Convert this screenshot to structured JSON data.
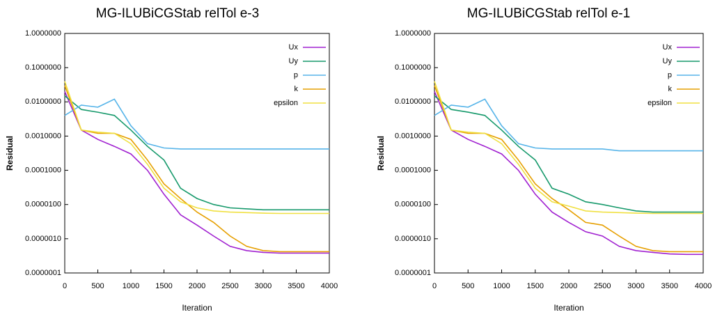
{
  "chart_data": [
    {
      "type": "line",
      "title": "MG-ILUBiCGStab relTol e-3",
      "x_label": "Iteration",
      "y_label": "Residual",
      "log_y": true,
      "legend": "top-right",
      "xlim": [
        0,
        4000
      ],
      "xticks": [
        0,
        500,
        1000,
        1500,
        2000,
        2500,
        3000,
        3500,
        4000
      ],
      "ylim": [
        1e-07,
        1
      ],
      "yticks": [
        {
          "value": 1e-07,
          "label": "0.0000001"
        },
        {
          "value": 1e-06,
          "label": "0.0000010"
        },
        {
          "value": 1e-05,
          "label": "0.0000100"
        },
        {
          "value": 0.0001,
          "label": "0.0001000"
        },
        {
          "value": 0.001,
          "label": "0.0010000"
        },
        {
          "value": 0.01,
          "label": "0.0100000"
        },
        {
          "value": 0.1,
          "label": "0.1000000"
        },
        {
          "value": 1,
          "label": "1.0000000"
        }
      ],
      "x": [
        0,
        250,
        500,
        750,
        1000,
        1250,
        1500,
        1750,
        2000,
        2250,
        2500,
        2750,
        3000,
        3250,
        3500,
        3750,
        4000
      ],
      "series": [
        {
          "name": "Ux",
          "color": "#a020d0",
          "values": [
            0.02,
            0.0015,
            0.0008,
            0.0005,
            0.0003,
            0.0001,
            2e-05,
            5e-06,
            2.5e-06,
            1.2e-06,
            6e-07,
            4.5e-07,
            4e-07,
            3.8e-07,
            3.8e-07,
            3.8e-07,
            3.8e-07
          ]
        },
        {
          "name": "Uy",
          "color": "#16996b",
          "values": [
            0.015,
            0.006,
            0.005,
            0.004,
            0.0015,
            0.0005,
            0.0002,
            3e-05,
            1.5e-05,
            1e-05,
            8e-06,
            7.5e-06,
            7e-06,
            7e-06,
            7e-06,
            7e-06,
            7e-06
          ]
        },
        {
          "name": "p",
          "color": "#56b4e9",
          "values": [
            0.004,
            0.008,
            0.007,
            0.012,
            0.002,
            0.0006,
            0.00045,
            0.00042,
            0.00042,
            0.00042,
            0.00042,
            0.00042,
            0.00042,
            0.00042,
            0.00042,
            0.00042,
            0.00042
          ]
        },
        {
          "name": "k",
          "color": "#e69f00",
          "values": [
            0.03,
            0.0015,
            0.0012,
            0.0012,
            0.0008,
            0.0002,
            4e-05,
            1.5e-05,
            6e-06,
            3e-06,
            1.2e-06,
            6e-07,
            4.5e-07,
            4.2e-07,
            4.2e-07,
            4.2e-07,
            4.2e-07
          ]
        },
        {
          "name": "epsilon",
          "color": "#f0e040",
          "values": [
            0.04,
            0.0015,
            0.0013,
            0.0012,
            0.0006,
            0.00015,
            3e-05,
            1.2e-05,
            8e-06,
            6.5e-06,
            6e-06,
            5.8e-06,
            5.6e-06,
            5.5e-06,
            5.5e-06,
            5.5e-06,
            5.5e-06
          ]
        }
      ]
    },
    {
      "type": "line",
      "title": "MG-ILUBiCGStab relTol e-1",
      "x_label": "Iteration",
      "y_label": "Residual",
      "log_y": true,
      "legend": "top-right",
      "xlim": [
        0,
        4000
      ],
      "xticks": [
        0,
        500,
        1000,
        1500,
        2000,
        2500,
        3000,
        3500,
        4000
      ],
      "ylim": [
        1e-07,
        1
      ],
      "yticks": [
        {
          "value": 1e-07,
          "label": "0.0000001"
        },
        {
          "value": 1e-06,
          "label": "0.0000010"
        },
        {
          "value": 1e-05,
          "label": "0.0000100"
        },
        {
          "value": 0.0001,
          "label": "0.0001000"
        },
        {
          "value": 0.001,
          "label": "0.0010000"
        },
        {
          "value": 0.01,
          "label": "0.0100000"
        },
        {
          "value": 0.1,
          "label": "0.1000000"
        },
        {
          "value": 1,
          "label": "1.0000000"
        }
      ],
      "x": [
        0,
        250,
        500,
        750,
        1000,
        1250,
        1500,
        1750,
        2000,
        2250,
        2500,
        2750,
        3000,
        3250,
        3500,
        3750,
        4000
      ],
      "series": [
        {
          "name": "Ux",
          "color": "#a020d0",
          "values": [
            0.02,
            0.0015,
            0.0008,
            0.0005,
            0.0003,
            0.0001,
            2e-05,
            6e-06,
            3e-06,
            1.6e-06,
            1.2e-06,
            6e-07,
            4.5e-07,
            4e-07,
            3.6e-07,
            3.5e-07,
            3.5e-07
          ]
        },
        {
          "name": "Uy",
          "color": "#16996b",
          "values": [
            0.015,
            0.006,
            0.005,
            0.004,
            0.0015,
            0.0005,
            0.0002,
            3e-05,
            2e-05,
            1.2e-05,
            1e-05,
            8e-06,
            6.5e-06,
            6e-06,
            6e-06,
            6e-06,
            6e-06
          ]
        },
        {
          "name": "p",
          "color": "#56b4e9",
          "values": [
            0.004,
            0.008,
            0.007,
            0.012,
            0.002,
            0.0006,
            0.00045,
            0.00042,
            0.00042,
            0.00042,
            0.00042,
            0.00037,
            0.00037,
            0.00037,
            0.00037,
            0.00037,
            0.00037
          ]
        },
        {
          "name": "k",
          "color": "#e69f00",
          "values": [
            0.03,
            0.0015,
            0.0012,
            0.0012,
            0.0008,
            0.0002,
            4e-05,
            1.5e-05,
            7e-06,
            3e-06,
            2.5e-06,
            1.2e-06,
            6e-07,
            4.5e-07,
            4.2e-07,
            4.2e-07,
            4.2e-07
          ]
        },
        {
          "name": "epsilon",
          "color": "#f0e040",
          "values": [
            0.04,
            0.0015,
            0.0013,
            0.0012,
            0.0006,
            0.00015,
            3e-05,
            1.2e-05,
            9e-06,
            6.5e-06,
            6e-06,
            5.8e-06,
            5.6e-06,
            5.5e-06,
            5.5e-06,
            5.5e-06,
            5.5e-06
          ]
        }
      ]
    }
  ]
}
